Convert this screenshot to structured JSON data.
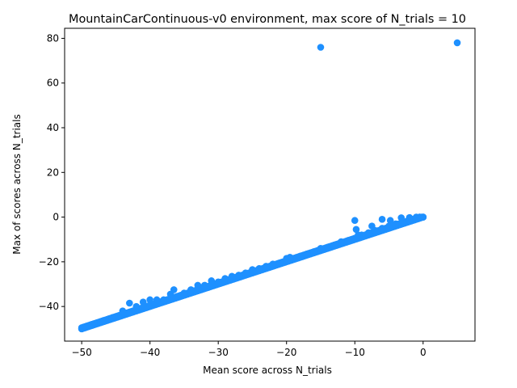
{
  "chart_data": {
    "type": "scatter",
    "title": "MountainCarContinuous-v0 environment, max score of N_trials = 10",
    "xlabel": "Mean score across N_trials",
    "ylabel": "Max of scores across N_trials",
    "xlim": [
      -52.5,
      7.6
    ],
    "ylim": [
      -55.5,
      84.5
    ],
    "xticks": [
      -50,
      -40,
      -30,
      -20,
      -10,
      0
    ],
    "yticks": [
      -40,
      -20,
      0,
      20,
      40,
      60,
      80
    ],
    "xtick_labels": [
      "−50",
      "−40",
      "−30",
      "−20",
      "−10",
      "0"
    ],
    "ytick_labels": [
      "−40",
      "−20",
      "0",
      "20",
      "40",
      "60",
      "80"
    ],
    "grid": false,
    "marker_color": "#1e90ff",
    "series": [
      {
        "name": "",
        "band": {
          "x_range": [
            -50,
            0
          ],
          "relation": "y ≈ x, bulk of points lie on the diagonal"
        },
        "points": [
          {
            "x": -50.0,
            "y": -50.0
          },
          {
            "x": -49.5,
            "y": -49.5
          },
          {
            "x": -48.5,
            "y": -48.0
          },
          {
            "x": -47.0,
            "y": -46.5
          },
          {
            "x": -45.5,
            "y": -45.0
          },
          {
            "x": -44.0,
            "y": -42.0
          },
          {
            "x": -43.0,
            "y": -38.5
          },
          {
            "x": -42.0,
            "y": -40.0
          },
          {
            "x": -41.0,
            "y": -38.0
          },
          {
            "x": -40.0,
            "y": -37.0
          },
          {
            "x": -39.0,
            "y": -37.0
          },
          {
            "x": -38.0,
            "y": -37.0
          },
          {
            "x": -37.0,
            "y": -34.5
          },
          {
            "x": -36.5,
            "y": -32.5
          },
          {
            "x": -35.0,
            "y": -34.0
          },
          {
            "x": -34.0,
            "y": -32.5
          },
          {
            "x": -33.0,
            "y": -30.5
          },
          {
            "x": -32.0,
            "y": -30.5
          },
          {
            "x": -31.0,
            "y": -28.5
          },
          {
            "x": -30.0,
            "y": -29.0
          },
          {
            "x": -29.0,
            "y": -27.5
          },
          {
            "x": -28.0,
            "y": -26.5
          },
          {
            "x": -27.0,
            "y": -26.0
          },
          {
            "x": -26.0,
            "y": -25.0
          },
          {
            "x": -25.0,
            "y": -23.5
          },
          {
            "x": -24.0,
            "y": -23.0
          },
          {
            "x": -23.0,
            "y": -22.0
          },
          {
            "x": -22.0,
            "y": -21.0
          },
          {
            "x": -21.0,
            "y": -20.5
          },
          {
            "x": -20.0,
            "y": -18.5
          },
          {
            "x": -19.5,
            "y": -18.0
          },
          {
            "x": -18.0,
            "y": -17.5
          },
          {
            "x": -17.0,
            "y": -16.5
          },
          {
            "x": -16.0,
            "y": -15.5
          },
          {
            "x": -15.0,
            "y": -14.0
          },
          {
            "x": -14.0,
            "y": -13.5
          },
          {
            "x": -13.0,
            "y": -12.5
          },
          {
            "x": -12.0,
            "y": -11.0
          },
          {
            "x": -11.0,
            "y": -10.5
          },
          {
            "x": -10.0,
            "y": -9.5
          },
          {
            "x": -9.5,
            "y": -8.0
          },
          {
            "x": -9.0,
            "y": -8.0
          },
          {
            "x": -8.0,
            "y": -7.0
          },
          {
            "x": -7.0,
            "y": -6.0
          },
          {
            "x": -6.0,
            "y": -5.0
          },
          {
            "x": -5.0,
            "y": -4.0
          },
          {
            "x": -4.0,
            "y": -3.0
          },
          {
            "x": -3.0,
            "y": -2.5
          },
          {
            "x": -2.0,
            "y": -1.5
          },
          {
            "x": -1.0,
            "y": -0.5
          },
          {
            "x": 0.0,
            "y": 0.0
          },
          {
            "x": -10.0,
            "y": -1.5
          },
          {
            "x": -9.8,
            "y": -5.5
          },
          {
            "x": -7.5,
            "y": -4.0
          },
          {
            "x": -6.0,
            "y": -1.0
          },
          {
            "x": -4.8,
            "y": -1.5
          },
          {
            "x": -3.2,
            "y": -0.3
          },
          {
            "x": -2.0,
            "y": -0.2
          },
          {
            "x": -1.0,
            "y": 0.0
          },
          {
            "x": -0.5,
            "y": 0.0
          },
          {
            "x": -15.0,
            "y": 76.0
          },
          {
            "x": 5.0,
            "y": 78.0
          }
        ]
      }
    ]
  }
}
